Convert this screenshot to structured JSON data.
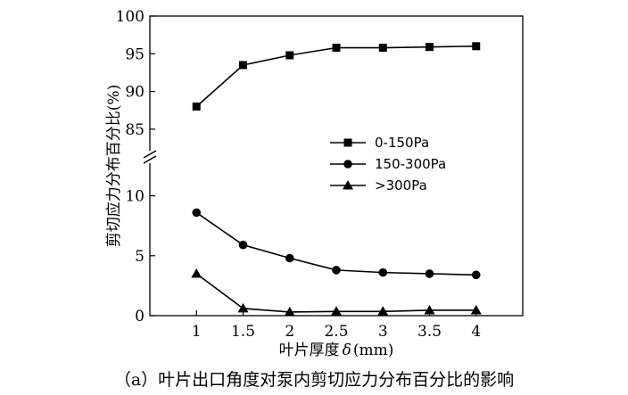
{
  "chart_data": {
    "type": "line",
    "caption": "（a）叶片出口角度对泵内剪切应力分布百分比的影响",
    "xlabel": "叶片厚度",
    "xlabel_symbol": "δ",
    "xlabel_unit": "(mm)",
    "ylabel": "剪切应力分布百分比(%)",
    "x": [
      1,
      1.5,
      2,
      2.5,
      3,
      3.5,
      4
    ],
    "x_ticks": [
      "1",
      "1.5",
      "2",
      "2.5",
      "3",
      "3.5",
      "4"
    ],
    "xlim": [
      0.5,
      4.5
    ],
    "y_axis_break": true,
    "y_upper_range": [
      82.5,
      100
    ],
    "y_upper_ticks": [
      85,
      90,
      95,
      100
    ],
    "y_lower_range": [
      0,
      12.5
    ],
    "y_lower_ticks": [
      0,
      5,
      10
    ],
    "legend_position": "center-right",
    "series": [
      {
        "name": "0-150Pa",
        "marker": "square",
        "values": [
          88.0,
          93.5,
          94.8,
          95.8,
          95.8,
          95.9,
          96.0
        ]
      },
      {
        "name": "150-300Pa",
        "marker": "circle",
        "values": [
          8.6,
          5.9,
          4.8,
          3.8,
          3.6,
          3.5,
          3.4
        ]
      },
      {
        "name": ">300Pa",
        "marker": "triangle",
        "values": [
          3.5,
          0.6,
          0.3,
          0.35,
          0.35,
          0.45,
          0.45
        ]
      }
    ]
  }
}
